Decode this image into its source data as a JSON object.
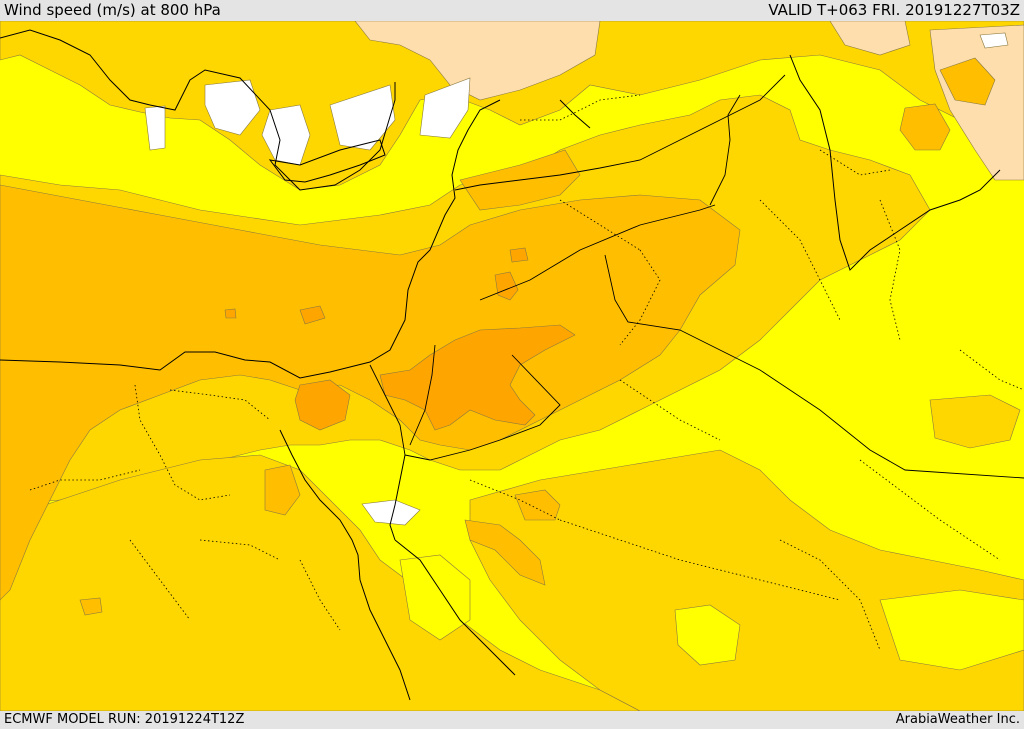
{
  "header": {
    "title": "Wind speed (m/s) at 800 hPa",
    "valid": "VALID T+063 FRI. 20191227T03Z"
  },
  "footer": {
    "model_run": "ECMWF MODEL RUN: 20191224T12Z",
    "credit": "ArabiaWeather Inc."
  },
  "colors": {
    "band_lowest": "#ffffff",
    "band_low": "#ffdead",
    "band_1": "#ffff00",
    "band_2": "#ffd700",
    "band_3": "#ffbf00",
    "band_4": "#ffa500",
    "contour_line": "#8a7a40",
    "boundary_line": "#000000"
  }
}
